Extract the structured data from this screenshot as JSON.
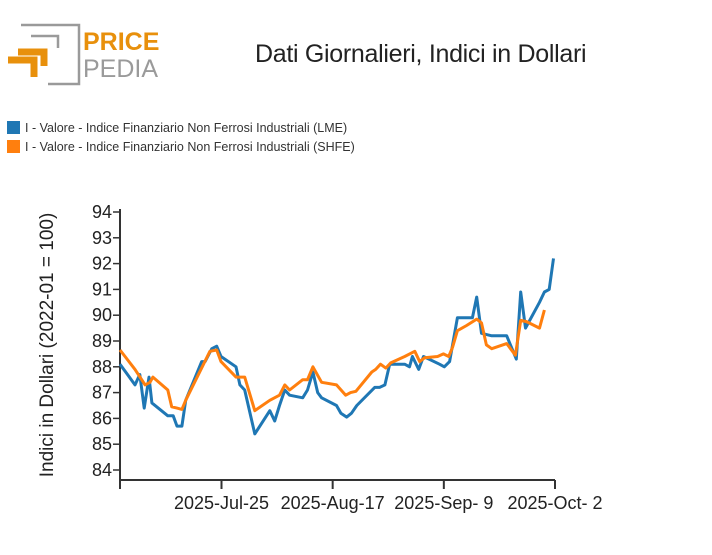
{
  "logo": {
    "text_top": "PRICE",
    "text_bottom": "PEDIA"
  },
  "colors": {
    "lme": "#1f77b4",
    "shfe": "#ff7f0e",
    "brand_orange": "#e8900c",
    "brand_gray": "#9a9a9a"
  },
  "chart_data": {
    "type": "line",
    "title": "Dati Giornalieri, Indici in Dollari",
    "ylabel": "Indici in Dollari (2022-01 = 100)",
    "xlabel": "",
    "x_unit": "days since 2025-07-04",
    "xlim": [
      0,
      90
    ],
    "ylim": [
      84,
      94
    ],
    "yticks": [
      "84",
      "85",
      "86",
      "87",
      "88",
      "89",
      "90",
      "91",
      "92",
      "93",
      "94"
    ],
    "xticks": [
      {
        "day": 21,
        "label": "2025-Jul-25"
      },
      {
        "day": 44,
        "label": "2025-Aug-17"
      },
      {
        "day": 67,
        "label": "2025-Sep- 9"
      },
      {
        "day": 90,
        "label": "2025-Oct- 2"
      }
    ],
    "legend_position": "top-left",
    "series": [
      {
        "name": "I - Valore - Indice Finanziario Non Ferrosi Industriali (LME)",
        "color": "#1f77b4",
        "points": [
          [
            0,
            88.1
          ],
          [
            3.1,
            87.3
          ],
          [
            4.1,
            87.7
          ],
          [
            5,
            86.4
          ],
          [
            6,
            87.6
          ],
          [
            6.6,
            86.6
          ],
          [
            9.9,
            86.1
          ],
          [
            11,
            86.1
          ],
          [
            11.8,
            85.7
          ],
          [
            12.8,
            85.7
          ],
          [
            13.6,
            86.7
          ],
          [
            16.9,
            88.2
          ],
          [
            17.6,
            88.2
          ],
          [
            19,
            88.7
          ],
          [
            20,
            88.8
          ],
          [
            20.9,
            88.4
          ],
          [
            24,
            88.0
          ],
          [
            24.8,
            87.3
          ],
          [
            25.8,
            87.1
          ],
          [
            27.9,
            85.4
          ],
          [
            31,
            86.3
          ],
          [
            32,
            85.9
          ],
          [
            33,
            86.5
          ],
          [
            34.1,
            87.1
          ],
          [
            35.1,
            86.9
          ],
          [
            37.8,
            86.8
          ],
          [
            38.8,
            87.1
          ],
          [
            39.9,
            87.8
          ],
          [
            40.9,
            87.0
          ],
          [
            41.7,
            86.8
          ],
          [
            44.8,
            86.5
          ],
          [
            45.7,
            86.2
          ],
          [
            46.9,
            86.05
          ],
          [
            47.9,
            86.2
          ],
          [
            49,
            86.5
          ],
          [
            52.7,
            87.2
          ],
          [
            53.7,
            87.2
          ],
          [
            54.8,
            87.3
          ],
          [
            55.8,
            88.1
          ],
          [
            58.9,
            88.1
          ],
          [
            59.9,
            88.0
          ],
          [
            60.5,
            88.4
          ],
          [
            61.8,
            87.9
          ],
          [
            62.8,
            88.4
          ],
          [
            66.1,
            88.1
          ],
          [
            67.1,
            88.0
          ],
          [
            68.2,
            88.2
          ],
          [
            69.8,
            89.9
          ],
          [
            72.9,
            89.9
          ],
          [
            73.8,
            90.7
          ],
          [
            74.8,
            89.3
          ],
          [
            76.9,
            89.2
          ],
          [
            80,
            89.2
          ],
          [
            82,
            88.3
          ],
          [
            82.9,
            90.9
          ],
          [
            83.9,
            89.5
          ],
          [
            86.8,
            90.5
          ],
          [
            87.8,
            90.9
          ],
          [
            88.8,
            91.0
          ],
          [
            89.7,
            92.2
          ]
        ]
      },
      {
        "name": "I - Valore - Indice Finanziario Non Ferrosi Industriali (SHFE)",
        "color": "#ff7f0e",
        "points": [
          [
            0,
            88.65
          ],
          [
            3.1,
            87.9
          ],
          [
            5.2,
            87.3
          ],
          [
            6.2,
            87.4
          ],
          [
            6.8,
            87.6
          ],
          [
            9.9,
            87.1
          ],
          [
            10.7,
            86.45
          ],
          [
            11.8,
            86.4
          ],
          [
            12.8,
            86.35
          ],
          [
            13.6,
            86.7
          ],
          [
            18.6,
            88.6
          ],
          [
            20,
            88.65
          ],
          [
            20.9,
            88.2
          ],
          [
            24,
            87.6
          ],
          [
            24.8,
            87.6
          ],
          [
            25.8,
            87.6
          ],
          [
            27.9,
            86.3
          ],
          [
            31,
            86.7
          ],
          [
            33,
            86.9
          ],
          [
            34.1,
            87.3
          ],
          [
            35.1,
            87.1
          ],
          [
            37.8,
            87.5
          ],
          [
            38.8,
            87.5
          ],
          [
            39.9,
            88.0
          ],
          [
            41.7,
            87.4
          ],
          [
            44.8,
            87.3
          ],
          [
            46.7,
            86.9
          ],
          [
            47.7,
            87.0
          ],
          [
            48.8,
            87.05
          ],
          [
            52.1,
            87.8
          ],
          [
            52.9,
            87.9
          ],
          [
            53.9,
            88.1
          ],
          [
            55,
            87.95
          ],
          [
            56,
            88.15
          ],
          [
            58.9,
            88.4
          ],
          [
            61,
            88.6
          ],
          [
            62,
            88.2
          ],
          [
            63,
            88.35
          ],
          [
            65.7,
            88.4
          ],
          [
            66.9,
            88.5
          ],
          [
            68,
            88.4
          ],
          [
            68.8,
            88.75
          ],
          [
            69.8,
            89.4
          ],
          [
            71.7,
            89.6
          ],
          [
            73.8,
            89.85
          ],
          [
            74.8,
            89.7
          ],
          [
            75.8,
            88.85
          ],
          [
            76.9,
            88.7
          ],
          [
            80,
            88.9
          ],
          [
            81.8,
            88.45
          ],
          [
            82.9,
            89.8
          ],
          [
            84.1,
            89.75
          ],
          [
            86.8,
            89.5
          ],
          [
            87.8,
            90.2
          ]
        ]
      }
    ]
  }
}
